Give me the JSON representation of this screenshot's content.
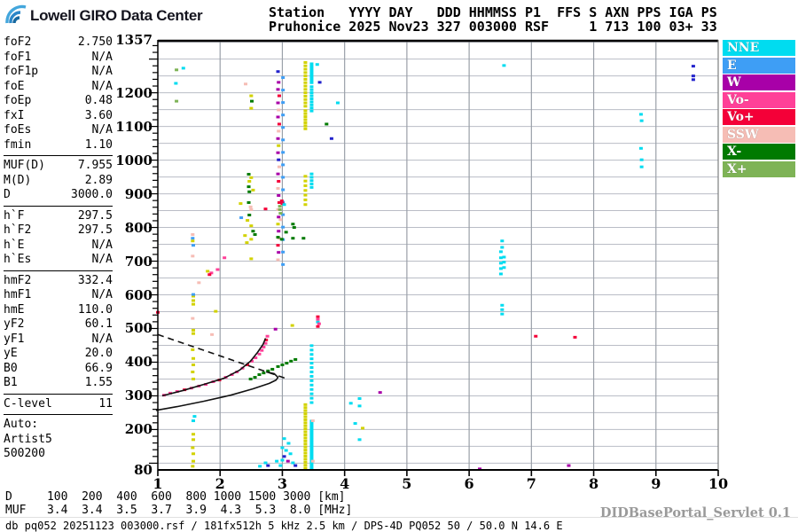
{
  "logo": {
    "text": "Lowell GIRO Data Center"
  },
  "header": {
    "line1": "Station   YYYY DAY   DDD HHMMSS P1  FFS S AXN PPS IGA PS",
    "line2": "Pruhonice 2025 Nov23 327 003000 RSF     1 713 100 03+ 33"
  },
  "params_panel": {
    "groups": [
      {
        "rows": [
          [
            "foF2",
            "2.750"
          ],
          [
            "foF1",
            "N/A"
          ],
          [
            "foF1p",
            "N/A"
          ],
          [
            "foE",
            "N/A"
          ],
          [
            "foEp",
            "0.48"
          ],
          [
            "fxI",
            "3.60"
          ],
          [
            "foEs",
            "N/A"
          ],
          [
            "fmin",
            "1.10"
          ]
        ]
      },
      {
        "rows": [
          [
            "MUF(D)",
            "7.955"
          ],
          [
            "M(D)",
            "2.89"
          ],
          [
            "D",
            "3000.0"
          ]
        ]
      },
      {
        "rows": [
          [
            "h`F",
            "297.5"
          ],
          [
            "h`F2",
            "297.5"
          ],
          [
            "h`E",
            "N/A"
          ],
          [
            "h`Es",
            "N/A"
          ]
        ]
      },
      {
        "rows": [
          [
            "hmF2",
            "332.4"
          ],
          [
            "hmF1",
            "N/A"
          ],
          [
            "hmE",
            "110.0"
          ],
          [
            "yF2",
            "60.1"
          ],
          [
            "yF1",
            "N/A"
          ],
          [
            "yE",
            "20.0"
          ],
          [
            "B0",
            "66.9"
          ],
          [
            "B1",
            "1.55"
          ]
        ]
      },
      {
        "rows": [
          [
            "C-level",
            "11"
          ]
        ]
      }
    ],
    "auto_label": "Auto:",
    "auto_lines": [
      "Artist5",
      "500200"
    ]
  },
  "legend": [
    {
      "label": "NNE",
      "color": "#00DCF0"
    },
    {
      "label": "E",
      "color": "#3E9EF5"
    },
    {
      "label": "W",
      "color": "#A800A8"
    },
    {
      "label": "Vo-",
      "color": "#FF4098"
    },
    {
      "label": "Vo+",
      "color": "#F40038"
    },
    {
      "label": "SSW",
      "color": "#F6BDB5"
    },
    {
      "label": "X-",
      "color": "#007A00"
    },
    {
      "label": "X+",
      "color": "#7EB356"
    }
  ],
  "bottom": {
    "d_line": "D     100  200  400  600  800 1000 1500 3000 [km]",
    "muf_line": "MUF   3.4  3.4  3.5  3.7  3.9  4.3  5.3  8.0 [MHz]",
    "status": "db pq052 20251123 003000.rsf / 181fx512h 5 kHz 2.5 km / DPS-4D PQ052 50 / 50.0 N 14.6 E",
    "servlet": "DIDBasePortal_Servlet 0.1"
  },
  "chart_data": {
    "type": "scatter",
    "title": "Pruhonice ionogram 2025 Nov23 327 003000 RSF",
    "x_axis": {
      "unit": "MHz",
      "min": 1,
      "max": 10,
      "ticks": [
        1,
        2,
        3,
        4,
        5,
        6,
        7,
        8,
        9,
        10
      ]
    },
    "y_axis": {
      "unit": "km",
      "min": 80,
      "max": 1357,
      "labeled_ticks": [
        1357,
        1200,
        1100,
        1000,
        900,
        800,
        700,
        600,
        500,
        400,
        300,
        200,
        80
      ],
      "grid_step_km": 50,
      "minor_tick_km": 20
    },
    "colors": {
      "nne": "#00DCF0",
      "e": "#3E9EF5",
      "w": "#A800A8",
      "vom": "#FF4098",
      "vop": "#F40038",
      "ssw": "#F6BDB5",
      "xm": "#007A00",
      "xp": "#7EB356",
      "yel": "#D2D200",
      "nav": "#2222CC"
    },
    "curves": [
      {
        "name": "model-dashed",
        "style": "dashed",
        "points": [
          [
            1.0,
            482
          ],
          [
            3.05,
            352
          ]
        ]
      },
      {
        "name": "hF-trace",
        "style": "solid",
        "points": [
          [
            1.07,
            300
          ],
          [
            1.39,
            315
          ],
          [
            1.74,
            334
          ],
          [
            2.06,
            352
          ],
          [
            2.31,
            376
          ],
          [
            2.49,
            403
          ],
          [
            2.6,
            429
          ],
          [
            2.69,
            453
          ],
          [
            2.73,
            471
          ]
        ]
      },
      {
        "name": "profile",
        "style": "solid",
        "points": [
          [
            0.97,
            257
          ],
          [
            1.31,
            268
          ],
          [
            1.74,
            284
          ],
          [
            2.17,
            302
          ],
          [
            2.53,
            321
          ],
          [
            2.79,
            337
          ],
          [
            2.9,
            347
          ],
          [
            2.93,
            355
          ],
          [
            2.87,
            366
          ],
          [
            2.74,
            371
          ]
        ]
      }
    ],
    "columns": [
      {
        "f": 3.01,
        "h1": 690,
        "h2": 1280,
        "c": "e",
        "step": 37
      },
      {
        "f": 3.37,
        "h1": 1160,
        "h2": 1292,
        "c": "yel",
        "step": 10
      },
      {
        "f": 3.37,
        "h1": 1093,
        "h2": 1150,
        "c": "yel",
        "step": 9
      },
      {
        "f": 3.37,
        "h1": 868,
        "h2": 958,
        "c": "yel",
        "step": 14
      },
      {
        "f": 3.37,
        "h1": 85,
        "h2": 278,
        "c": "yel",
        "step": 9
      },
      {
        "f": 3.47,
        "h1": 1230,
        "h2": 1292,
        "c": "nne",
        "step": 7
      },
      {
        "f": 3.47,
        "h1": 1146,
        "h2": 1226,
        "c": "nne",
        "step": 9
      },
      {
        "f": 3.47,
        "h1": 919,
        "h2": 961,
        "c": "nne",
        "step": 10
      },
      {
        "f": 3.47,
        "h1": 280,
        "h2": 450,
        "c": "nne",
        "step": 13
      },
      {
        "f": 3.47,
        "h1": 85,
        "h2": 230,
        "c": "nne",
        "step": 7
      }
    ],
    "points": [
      [
        1.41,
        1273,
        "nne"
      ],
      [
        1.3,
        1268,
        "xp"
      ],
      [
        1.29,
        1228,
        "nne"
      ],
      [
        1.3,
        1175,
        "xp"
      ],
      [
        2.41,
        1226,
        "ssw"
      ],
      [
        2.5,
        1191,
        "yel"
      ],
      [
        2.51,
        1175,
        "xm"
      ],
      [
        2.5,
        1154,
        "yel"
      ],
      [
        2.93,
        1263,
        "nav"
      ],
      [
        2.94,
        1231,
        "w"
      ],
      [
        2.93,
        1210,
        "w"
      ],
      [
        2.95,
        1191,
        "vop"
      ],
      [
        2.93,
        1170,
        "w"
      ],
      [
        2.94,
        1149,
        "ssw"
      ],
      [
        2.93,
        1128,
        "w"
      ],
      [
        2.95,
        1107,
        "vop"
      ],
      [
        2.94,
        1086,
        "ssw"
      ],
      [
        2.93,
        1064,
        "w"
      ],
      [
        2.94,
        1043,
        "yel"
      ],
      [
        2.93,
        1022,
        "w"
      ],
      [
        2.94,
        1001,
        "nav"
      ],
      [
        2.95,
        980,
        "ssw"
      ],
      [
        2.93,
        959,
        "w"
      ],
      [
        2.94,
        937,
        "vop"
      ],
      [
        2.93,
        916,
        "ssw"
      ],
      [
        2.94,
        895,
        "w"
      ],
      [
        2.95,
        874,
        "vop"
      ],
      [
        2.93,
        853,
        "ssw"
      ],
      [
        2.94,
        831,
        "w"
      ],
      [
        2.93,
        810,
        "yel"
      ],
      [
        2.94,
        789,
        "w"
      ],
      [
        2.95,
        768,
        "ssw"
      ],
      [
        2.93,
        747,
        "vop"
      ],
      [
        2.94,
        726,
        "w"
      ],
      [
        2.93,
        704,
        "ssw"
      ],
      [
        3.56,
        1284,
        "nne"
      ],
      [
        3.6,
        1231,
        "nav"
      ],
      [
        3.79,
        1064,
        "nav"
      ],
      [
        3.89,
        1170,
        "nne"
      ],
      [
        3.71,
        1107,
        "xm"
      ],
      [
        6.56,
        1281,
        "nne"
      ],
      [
        9.6,
        1279,
        "nav"
      ],
      [
        9.6,
        1250,
        "nav"
      ],
      [
        9.6,
        1239,
        "nav"
      ],
      [
        8.76,
        1136,
        "nne"
      ],
      [
        8.77,
        1117,
        "nne"
      ],
      [
        8.76,
        1035,
        "nne"
      ],
      [
        8.77,
        1001,
        "nne"
      ],
      [
        8.77,
        980,
        "nne"
      ],
      [
        2.46,
        958,
        "xm"
      ],
      [
        2.5,
        948,
        "yel"
      ],
      [
        2.47,
        937,
        "yel"
      ],
      [
        2.46,
        921,
        "xm"
      ],
      [
        2.53,
        911,
        "yel"
      ],
      [
        2.47,
        906,
        "xm"
      ],
      [
        2.33,
        871,
        "yel"
      ],
      [
        2.46,
        874,
        "xm"
      ],
      [
        2.49,
        861,
        "ssw"
      ],
      [
        2.5,
        853,
        "ssw"
      ],
      [
        2.47,
        837,
        "xm"
      ],
      [
        2.34,
        829,
        "e"
      ],
      [
        2.44,
        821,
        "yel"
      ],
      [
        2.5,
        805,
        "yel"
      ],
      [
        2.53,
        789,
        "xm"
      ],
      [
        2.56,
        779,
        "xm"
      ],
      [
        2.4,
        776,
        "yel"
      ],
      [
        2.5,
        765,
        "yel"
      ],
      [
        2.43,
        755,
        "yel"
      ],
      [
        2.73,
        855,
        "vop"
      ],
      [
        2.07,
        710,
        "vom"
      ],
      [
        2.5,
        707,
        "yel"
      ],
      [
        2.99,
        879,
        "vop"
      ],
      [
        3.0,
        871,
        "vop"
      ],
      [
        3.03,
        868,
        "nne"
      ],
      [
        2.96,
        863,
        "xp"
      ],
      [
        2.96,
        853,
        "xp"
      ],
      [
        2.97,
        842,
        "xp"
      ],
      [
        2.97,
        823,
        "ssw"
      ],
      [
        3.17,
        810,
        "xm"
      ],
      [
        3.19,
        800,
        "xm"
      ],
      [
        3.06,
        786,
        "xm"
      ],
      [
        2.93,
        771,
        "xm"
      ],
      [
        2.99,
        765,
        "xm"
      ],
      [
        3.17,
        768,
        "xm"
      ],
      [
        3.34,
        768,
        "xm"
      ],
      [
        1.56,
        779,
        "ssw"
      ],
      [
        1.56,
        768,
        "e"
      ],
      [
        1.56,
        760,
        "yel"
      ],
      [
        1.57,
        747,
        "e"
      ],
      [
        1.56,
        715,
        "ssw"
      ],
      [
        1.57,
        596,
        "yel"
      ],
      [
        1.57,
        583,
        "yel"
      ],
      [
        1.57,
        572,
        "yel"
      ],
      [
        1.56,
        530,
        "ssw"
      ],
      [
        1.57,
        495,
        "yel"
      ],
      [
        1.57,
        485,
        "yel"
      ],
      [
        1.56,
        437,
        "yel"
      ],
      [
        1.57,
        411,
        "yel"
      ],
      [
        1.57,
        392,
        "yel"
      ],
      [
        1.56,
        371,
        "yel"
      ],
      [
        1.57,
        350,
        "yel"
      ],
      [
        1.59,
        239,
        "nne"
      ],
      [
        1.57,
        226,
        "nne"
      ],
      [
        1.57,
        186,
        "yel"
      ],
      [
        1.57,
        170,
        "yel"
      ],
      [
        1.56,
        146,
        "yel"
      ],
      [
        1.57,
        128,
        "yel"
      ],
      [
        1.57,
        106,
        "yel"
      ],
      [
        1.56,
        91,
        "yel"
      ],
      [
        1.0,
        548,
        "vop"
      ],
      [
        1.66,
        636,
        "ssw"
      ],
      [
        1.8,
        670,
        "yel"
      ],
      [
        1.86,
        665,
        "vom"
      ],
      [
        1.83,
        660,
        "vop"
      ],
      [
        1.96,
        675,
        "vom"
      ],
      [
        1.57,
        601,
        "e"
      ],
      [
        1.87,
        482,
        "ssw"
      ],
      [
        1.93,
        551,
        "yel"
      ],
      [
        2.89,
        498,
        "w"
      ],
      [
        3.16,
        509,
        "yel"
      ],
      [
        3.57,
        535,
        "vop"
      ],
      [
        3.57,
        527,
        "vom"
      ],
      [
        3.57,
        519,
        "nne"
      ],
      [
        3.59,
        514,
        "vom"
      ],
      [
        3.57,
        506,
        "vop"
      ],
      [
        6.53,
        760,
        "nne"
      ],
      [
        6.53,
        741,
        "nne"
      ],
      [
        6.51,
        728,
        "nne"
      ],
      [
        6.51,
        710,
        "nne"
      ],
      [
        6.51,
        694,
        "nne"
      ],
      [
        6.51,
        678,
        "nne"
      ],
      [
        6.51,
        662,
        "nne"
      ],
      [
        6.56,
        712,
        "nne"
      ],
      [
        6.56,
        697,
        "nne"
      ],
      [
        6.56,
        681,
        "nne"
      ],
      [
        6.53,
        569,
        "nne"
      ],
      [
        6.53,
        556,
        "nne"
      ],
      [
        6.53,
        543,
        "nne"
      ],
      [
        7.07,
        477,
        "vop"
      ],
      [
        7.7,
        474,
        "vop"
      ],
      [
        3.03,
        173,
        "nne"
      ],
      [
        3.1,
        159,
        "nne"
      ],
      [
        3.0,
        146,
        "nne"
      ],
      [
        3.06,
        138,
        "nne"
      ],
      [
        3.13,
        128,
        "nne"
      ],
      [
        3.03,
        120,
        "nav"
      ],
      [
        3.0,
        109,
        "nne"
      ],
      [
        3.09,
        106,
        "w"
      ],
      [
        3.17,
        101,
        "nne"
      ],
      [
        3.21,
        93,
        "nav"
      ],
      [
        2.97,
        93,
        "nne"
      ],
      [
        2.91,
        106,
        "nne"
      ],
      [
        2.77,
        93,
        "nav"
      ],
      [
        2.73,
        101,
        "nne"
      ],
      [
        2.64,
        91,
        "nne"
      ],
      [
        3.49,
        226,
        "ssw"
      ],
      [
        3.49,
        106,
        "ssw"
      ],
      [
        4.24,
        292,
        "nne"
      ],
      [
        4.24,
        270,
        "nne"
      ],
      [
        4.17,
        218,
        "nne"
      ],
      [
        4.29,
        204,
        "yel"
      ],
      [
        4.24,
        170,
        "nne"
      ],
      [
        4.57,
        310,
        "w"
      ],
      [
        4.1,
        278,
        "nne"
      ],
      [
        6.17,
        83,
        "w"
      ],
      [
        7.6,
        93,
        "w"
      ],
      [
        2.49,
        350,
        "xm"
      ],
      [
        2.56,
        355,
        "xm"
      ],
      [
        2.63,
        363,
        "xm"
      ],
      [
        2.7,
        368,
        "xm"
      ],
      [
        2.77,
        374,
        "xm"
      ],
      [
        2.84,
        379,
        "xm"
      ],
      [
        2.93,
        387,
        "xm"
      ],
      [
        3.0,
        392,
        "xm"
      ],
      [
        3.07,
        397,
        "xm"
      ],
      [
        3.14,
        403,
        "xm"
      ],
      [
        3.21,
        408,
        "xm"
      ],
      [
        1.1,
        302,
        "vom"
      ],
      [
        1.2,
        308,
        "vom"
      ],
      [
        1.31,
        313,
        "vom"
      ],
      [
        1.43,
        318,
        "vop"
      ],
      [
        1.54,
        323,
        "vom"
      ],
      [
        1.66,
        329,
        "vom"
      ],
      [
        1.77,
        334,
        "vom"
      ],
      [
        1.89,
        342,
        "vom"
      ],
      [
        1.99,
        347,
        "vop"
      ],
      [
        2.09,
        355,
        "vom"
      ],
      [
        2.19,
        363,
        "vom"
      ],
      [
        2.27,
        371,
        "vom"
      ],
      [
        2.36,
        382,
        "vom"
      ],
      [
        2.44,
        392,
        "vop"
      ],
      [
        2.51,
        403,
        "vom"
      ],
      [
        2.57,
        413,
        "vom"
      ],
      [
        2.63,
        424,
        "vom"
      ],
      [
        2.67,
        435,
        "vom"
      ],
      [
        2.7,
        445,
        "vom"
      ],
      [
        2.73,
        456,
        "vom"
      ],
      [
        2.74,
        466,
        "vop"
      ],
      [
        2.76,
        477,
        "vom"
      ]
    ]
  }
}
